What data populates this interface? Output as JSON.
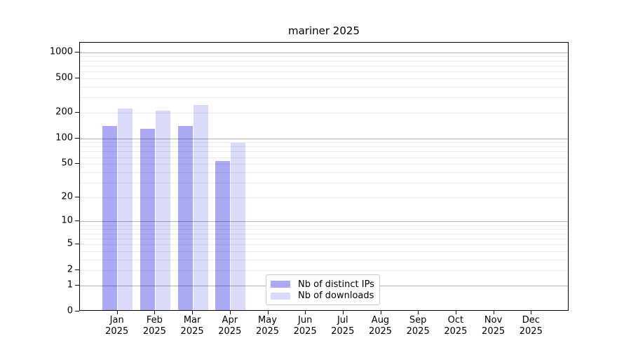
{
  "title": "mariner 2025",
  "colors": {
    "distinct_ips": "#a9a9f4",
    "downloads": "#dadaf9",
    "grid_major": "#b0b0b0",
    "grid_minor": "#ebebeb",
    "axis": "#000000",
    "legend_border": "#cccccc"
  },
  "legend": {
    "items": [
      {
        "label": "Nb of distinct IPs",
        "color": "#a9a9f4"
      },
      {
        "label": "Nb of downloads",
        "color": "#dadaf9"
      }
    ]
  },
  "chart_data": {
    "type": "bar",
    "title": "mariner 2025",
    "categories": [
      "Jan",
      "Feb",
      "Mar",
      "Apr",
      "May",
      "Jun",
      "Jul",
      "Aug",
      "Sep",
      "Oct",
      "Nov",
      "Dec"
    ],
    "year": "2025",
    "series": [
      {
        "name": "Nb of distinct IPs",
        "values": [
          133,
          125,
          134,
          52,
          0,
          0,
          0,
          0,
          0,
          0,
          0,
          0
        ]
      },
      {
        "name": "Nb of downloads",
        "values": [
          215,
          201,
          234,
          85,
          0,
          0,
          0,
          0,
          0,
          0,
          0,
          0
        ]
      }
    ],
    "yscale": "log10(value+1)",
    "yticks": [
      0,
      1,
      2,
      5,
      10,
      20,
      50,
      100,
      200,
      500,
      1000
    ],
    "ylim": [
      0,
      1288
    ],
    "xlabel": "",
    "ylabel": "",
    "grid": "on",
    "legend_position": "lower center"
  }
}
